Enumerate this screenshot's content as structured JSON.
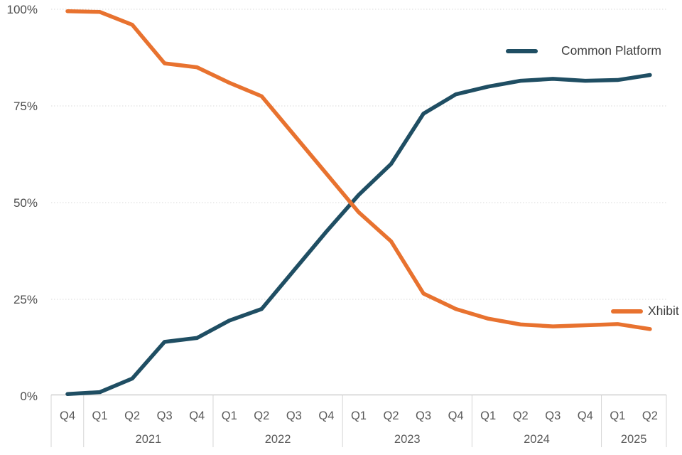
{
  "chart_data": {
    "type": "line",
    "title": "",
    "y_axis": {
      "min": 0,
      "max": 100,
      "grid": "dotted-horizontal",
      "ticks": [
        {
          "value": 0,
          "label": "0%"
        },
        {
          "value": 25,
          "label": "25%"
        },
        {
          "value": 50,
          "label": "50%"
        },
        {
          "value": 75,
          "label": "75%"
        },
        {
          "value": 100,
          "label": "100%"
        }
      ]
    },
    "x_axis": {
      "year_groups": [
        {
          "year": "",
          "quarters": [
            "Q4"
          ]
        },
        {
          "year": "2021",
          "quarters": [
            "Q1",
            "Q2",
            "Q3",
            "Q4"
          ]
        },
        {
          "year": "2022",
          "quarters": [
            "Q1",
            "Q2",
            "Q3",
            "Q4"
          ]
        },
        {
          "year": "2023",
          "quarters": [
            "Q1",
            "Q2",
            "Q3",
            "Q4"
          ]
        },
        {
          "year": "2024",
          "quarters": [
            "Q1",
            "Q2",
            "Q3",
            "Q4"
          ]
        },
        {
          "year": "2025",
          "quarters": [
            "Q1",
            "Q2"
          ]
        }
      ]
    },
    "series": [
      {
        "name": "Common Platform",
        "color": "#1F4E63",
        "values": [
          0.5,
          1,
          4.5,
          14,
          15,
          19.5,
          22.5,
          32.5,
          42.5,
          52,
          60,
          73,
          78,
          80,
          81.5,
          82,
          81.5,
          81.7,
          83
        ]
      },
      {
        "name": "Xhibit",
        "color": "#E8722F",
        "values": [
          99.5,
          99.3,
          96,
          86,
          85,
          81,
          77.5,
          67.5,
          57.5,
          47.5,
          40,
          26.5,
          22.5,
          20,
          18.5,
          18,
          18.3,
          18.6,
          17.3
        ]
      }
    ],
    "legend_position": "inside-right"
  },
  "colors": {
    "background": "#FFFFFF",
    "grid": "#D9D9D9",
    "axis_line": "#C3C3C3",
    "separator": "#D5D5D5",
    "x_tick_text": "#595959",
    "y_tick_text": "#4D4D4D",
    "legend_text": "#3F3F3F"
  }
}
